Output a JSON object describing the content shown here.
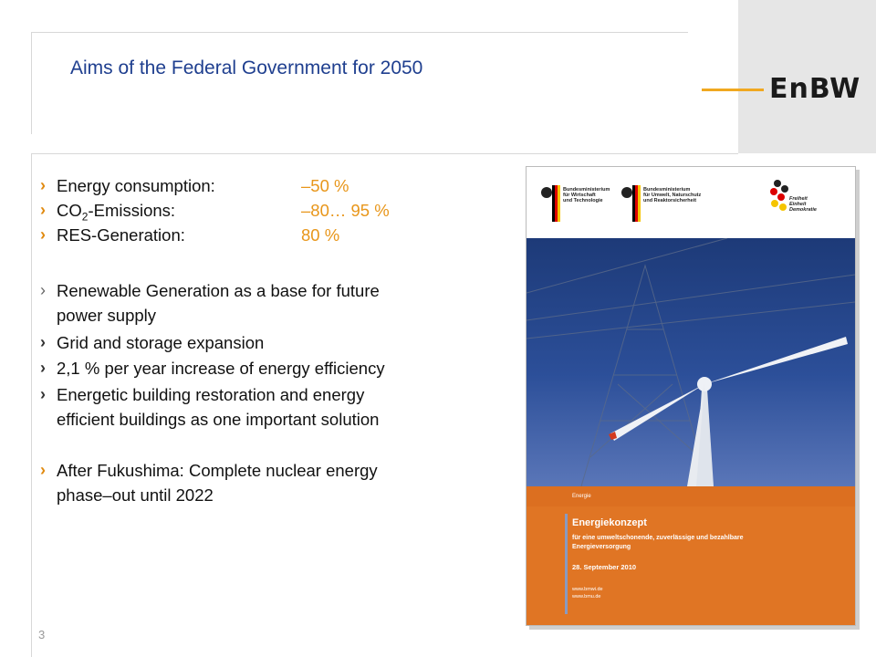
{
  "header": {
    "title": "Aims of the Federal Government for 2050",
    "logo_text": "EnBW"
  },
  "targets": [
    {
      "label_main": "Energy consumption:",
      "value": "–50 %"
    },
    {
      "label_main": "CO",
      "label_sub": "2",
      "label_rest": "-Emissions:",
      "value": "–80… 95 %"
    },
    {
      "label_main": "RES-Generation:",
      "value": "80 %"
    }
  ],
  "bullets": [
    {
      "line1": "Renewable Generation as a base for future",
      "line2": "power supply"
    },
    {
      "line1": "Grid and storage expansion"
    },
    {
      "line1": "2,1 % per year increase of energy efficiency"
    },
    {
      "line1": "Energetic building restoration and energy",
      "line2": "efficient buildings as one important solution"
    },
    {
      "line1": "After Fukushima: Complete nuclear energy",
      "line2": "phase–out until 2022"
    }
  ],
  "bullet_glyph": "›",
  "page_number": "3",
  "cover": {
    "ministry1": [
      "Bundesministerium",
      "für Wirtschaft",
      "und Technologie"
    ],
    "ministry2": [
      "Bundesministerium",
      "für Umwelt, Naturschutz",
      "und Reaktorsicherheit"
    ],
    "motto": [
      "Freiheit",
      "Einheit",
      "Demokratie"
    ],
    "section": "Energie",
    "title": "Energiekonzept",
    "subtitle": "für eine umweltschonende, zuverlässige und bezahlbare Energieversorgung",
    "date": "28. September 2010",
    "url1": "www.bmwi.de",
    "url2": "www.bmu.de"
  },
  "colors": {
    "title": "#1f3f8f",
    "accent": "#e8961a",
    "cover_orange": "#e07524"
  }
}
